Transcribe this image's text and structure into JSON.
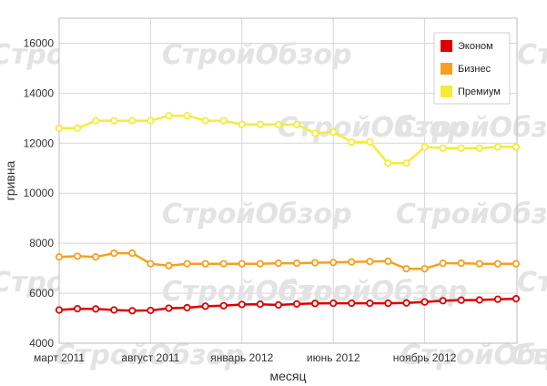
{
  "watermark": "СтройОбзор",
  "chart_data": {
    "type": "line",
    "title": "",
    "xlabel": "месяц",
    "ylabel": "гривна",
    "ylim": [
      4000,
      17000
    ],
    "yticks": [
      4000,
      6000,
      8000,
      10000,
      12000,
      14000,
      16000
    ],
    "grid": true,
    "legend_position": "top-right",
    "x_count": 26,
    "x_labels": [
      {
        "index": 0,
        "label": "март 2011"
      },
      {
        "index": 5,
        "label": "август 2011"
      },
      {
        "index": 10,
        "label": "январь 2012"
      },
      {
        "index": 15,
        "label": "июнь 2012"
      },
      {
        "index": 20,
        "label": "ноябрь 2012"
      }
    ],
    "series": [
      {
        "name": "Эконом",
        "color": "#dd0000",
        "values": [
          5330,
          5380,
          5370,
          5330,
          5300,
          5310,
          5400,
          5420,
          5480,
          5500,
          5550,
          5560,
          5530,
          5570,
          5590,
          5600,
          5600,
          5600,
          5600,
          5610,
          5650,
          5700,
          5720,
          5730,
          5760,
          5780
        ]
      },
      {
        "name": "Бизнес",
        "color": "#f5a020",
        "values": [
          7450,
          7480,
          7450,
          7600,
          7600,
          7180,
          7100,
          7180,
          7180,
          7180,
          7180,
          7180,
          7200,
          7200,
          7220,
          7230,
          7250,
          7270,
          7280,
          6980,
          6980,
          7200,
          7200,
          7180,
          7180,
          7180
        ]
      },
      {
        "name": "Премиум",
        "color": "#f5ec3a",
        "values": [
          12600,
          12600,
          12900,
          12900,
          12900,
          12900,
          13100,
          13100,
          12900,
          12900,
          12750,
          12750,
          12750,
          12750,
          12400,
          12450,
          12050,
          12050,
          11200,
          11200,
          11850,
          11800,
          11800,
          11800,
          11850,
          11850
        ]
      }
    ]
  }
}
